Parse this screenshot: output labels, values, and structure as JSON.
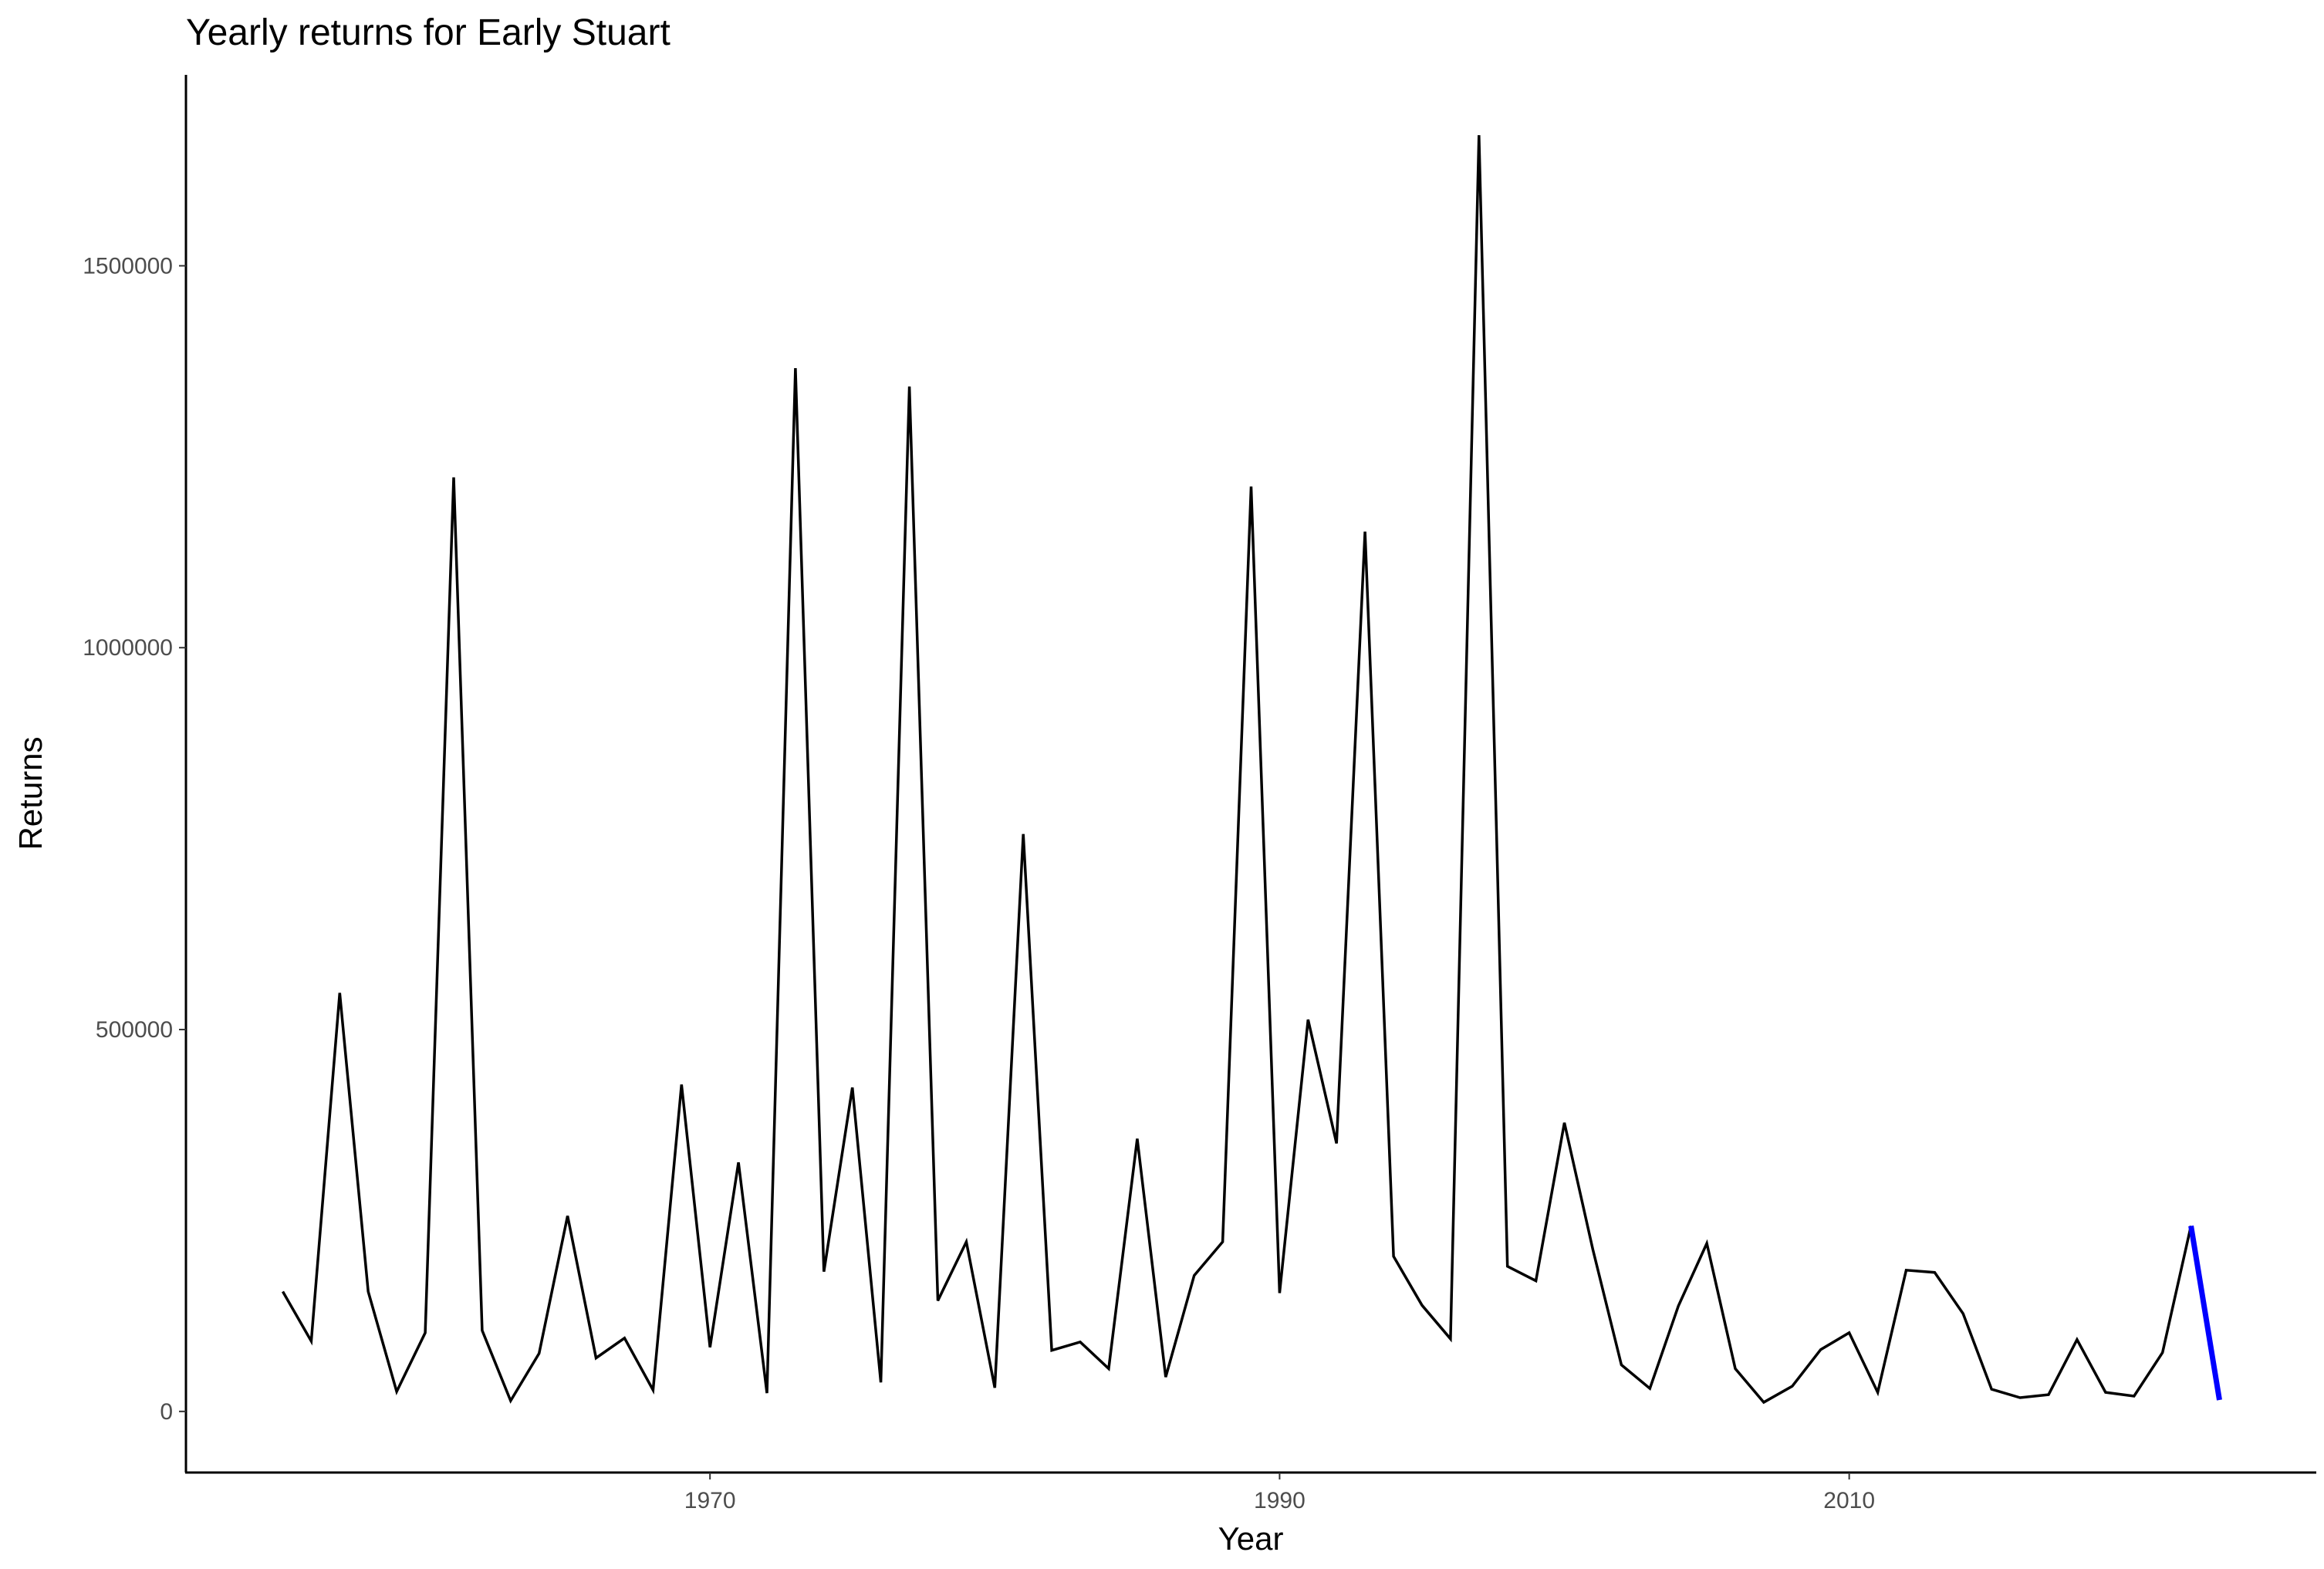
{
  "chart_data": {
    "type": "line",
    "title": "Yearly returns for Early Stuart",
    "xlabel": "Year",
    "ylabel": "Returns",
    "xlim": [
      1951.6,
      2026.4
    ],
    "ylim": [
      -80000,
      1750000
    ],
    "xticks": [
      1970,
      1990,
      2010
    ],
    "xtick_labels": [
      "1970",
      "1990",
      "2010"
    ],
    "yticks": [
      0,
      500000,
      1000000,
      1500000
    ],
    "ytick_labels": [
      "0",
      "500000",
      "1000000",
      "1500000"
    ],
    "grid": false,
    "legend": "none",
    "series": [
      {
        "color": "#000000",
        "x": [
          1955,
          1956,
          1957,
          1958,
          1959,
          1960,
          1961,
          1962,
          1963,
          1964,
          1965,
          1966,
          1967,
          1968,
          1969,
          1970,
          1971,
          1972,
          1973,
          1974,
          1975,
          1976,
          1977,
          1978,
          1979,
          1980,
          1981,
          1982,
          1983,
          1984,
          1985,
          1986,
          1987,
          1988,
          1989,
          1990,
          1991,
          1992,
          1993,
          1994,
          1995,
          1996,
          1997,
          1998,
          1999,
          2000,
          2001,
          2002,
          2003,
          2004,
          2005,
          2006,
          2007,
          2008,
          2009,
          2010,
          2011,
          2012,
          2013,
          2014,
          2015,
          2016,
          2017,
          2018,
          2019,
          2020,
          2021,
          2022
        ],
        "y": [
          157000,
          92000,
          548000,
          157000,
          26000,
          103000,
          1223000,
          106000,
          14000,
          76000,
          256000,
          70000,
          96000,
          28000,
          428000,
          84000,
          326000,
          24000,
          1366000,
          183000,
          424000,
          38000,
          1342000,
          145000,
          222000,
          31000,
          756000,
          80000,
          91000,
          56000,
          357000,
          45000,
          178000,
          222000,
          1211000,
          155000,
          513000,
          351000,
          1152000,
          203000,
          139000,
          95000,
          1671000,
          190000,
          171000,
          378000,
          212000,
          61000,
          30000,
          138000,
          220000,
          56000,
          12000,
          33000,
          81000,
          103000,
          25000,
          185000,
          182000,
          128000,
          29000,
          18000,
          22000,
          94000,
          25000,
          20000,
          77000,
          243000
        ]
      },
      {
        "color": "#0000ff",
        "x": [
          2022,
          2023
        ],
        "y": [
          243000,
          15000
        ]
      }
    ]
  }
}
